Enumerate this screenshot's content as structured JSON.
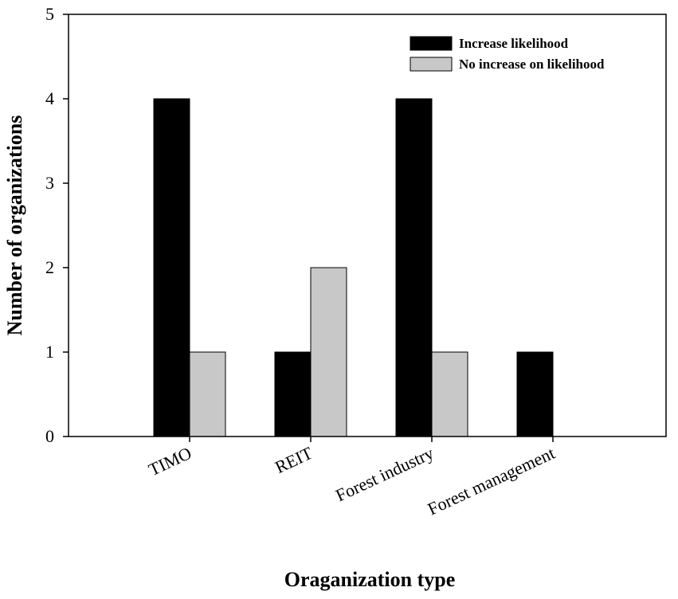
{
  "chart_data": {
    "type": "bar",
    "xlabel": "Oraganization type",
    "ylabel": "Number of organizations",
    "categories": [
      "TIMO",
      "REIT",
      "Forest industry",
      "Forest management"
    ],
    "series": [
      {
        "name": "Increase likelihood",
        "values": [
          4,
          1,
          4,
          1
        ],
        "color": "#000000"
      },
      {
        "name": "No increase on likelihood",
        "values": [
          1,
          2,
          1,
          0
        ],
        "color": "#c8c8c8"
      }
    ],
    "ylim": [
      0,
      5
    ],
    "yticks": [
      0,
      1,
      2,
      3,
      4,
      5
    ],
    "grid": false,
    "legend_position": "top-right"
  }
}
